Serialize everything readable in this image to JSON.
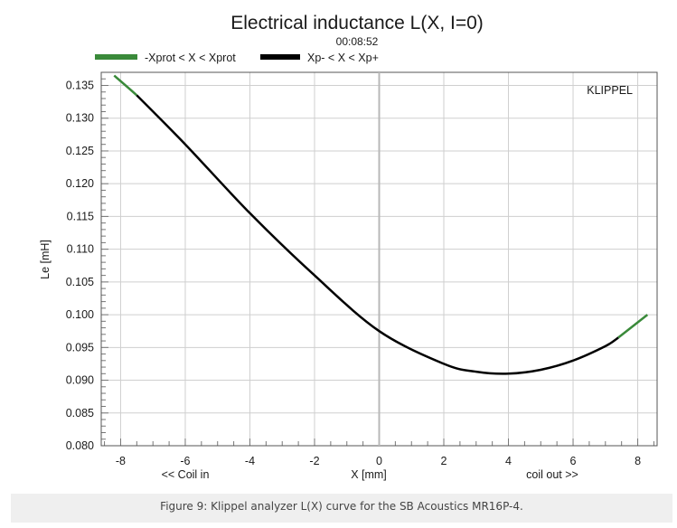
{
  "chart_data": {
    "type": "line",
    "title": "Electrical inductance L(X, I=0)",
    "subtitle": "00:08:52",
    "xlabel": "X [mm]",
    "ylabel": "Le [mH]",
    "x_annotation_left": "<< Coil in",
    "x_annotation_right": "coil out >>",
    "brand": "KLIPPEL",
    "xlim": [
      -8.6,
      8.6
    ],
    "ylim": [
      0.08,
      0.137
    ],
    "xticks": [
      -8,
      -6,
      -4,
      -2,
      0,
      2,
      4,
      6,
      8
    ],
    "yticks": [
      0.08,
      0.085,
      0.09,
      0.095,
      0.1,
      0.105,
      0.11,
      0.115,
      0.12,
      0.125,
      0.13,
      0.135
    ],
    "ytick_labels": [
      "0.080",
      "0.085",
      "0.090",
      "0.095",
      "0.100",
      "0.105",
      "0.110",
      "0.115",
      "0.120",
      "0.125",
      "0.130",
      "0.135"
    ],
    "grid": true,
    "legend_position": "top",
    "series": [
      {
        "name": "-Xprot < X < Xprot",
        "color": "#3a8a3a",
        "x": [
          -8.2,
          -7.5,
          7.4,
          8.3
        ],
        "y": [
          0.1365,
          0.1335,
          0.0965,
          0.1
        ]
      },
      {
        "name": "Xp- < X < Xp+",
        "color": "#000000",
        "x": [
          -7.5,
          -6,
          -4,
          -2,
          0,
          2,
          3,
          4,
          5,
          6,
          7,
          7.4
        ],
        "y": [
          0.1335,
          0.126,
          0.1155,
          0.106,
          0.0975,
          0.0925,
          0.0913,
          0.091,
          0.0916,
          0.093,
          0.0952,
          0.0965
        ]
      }
    ]
  },
  "caption": "Figure 9: Klippel analyzer L(X) curve for the SB Acoustics MR16P-4."
}
